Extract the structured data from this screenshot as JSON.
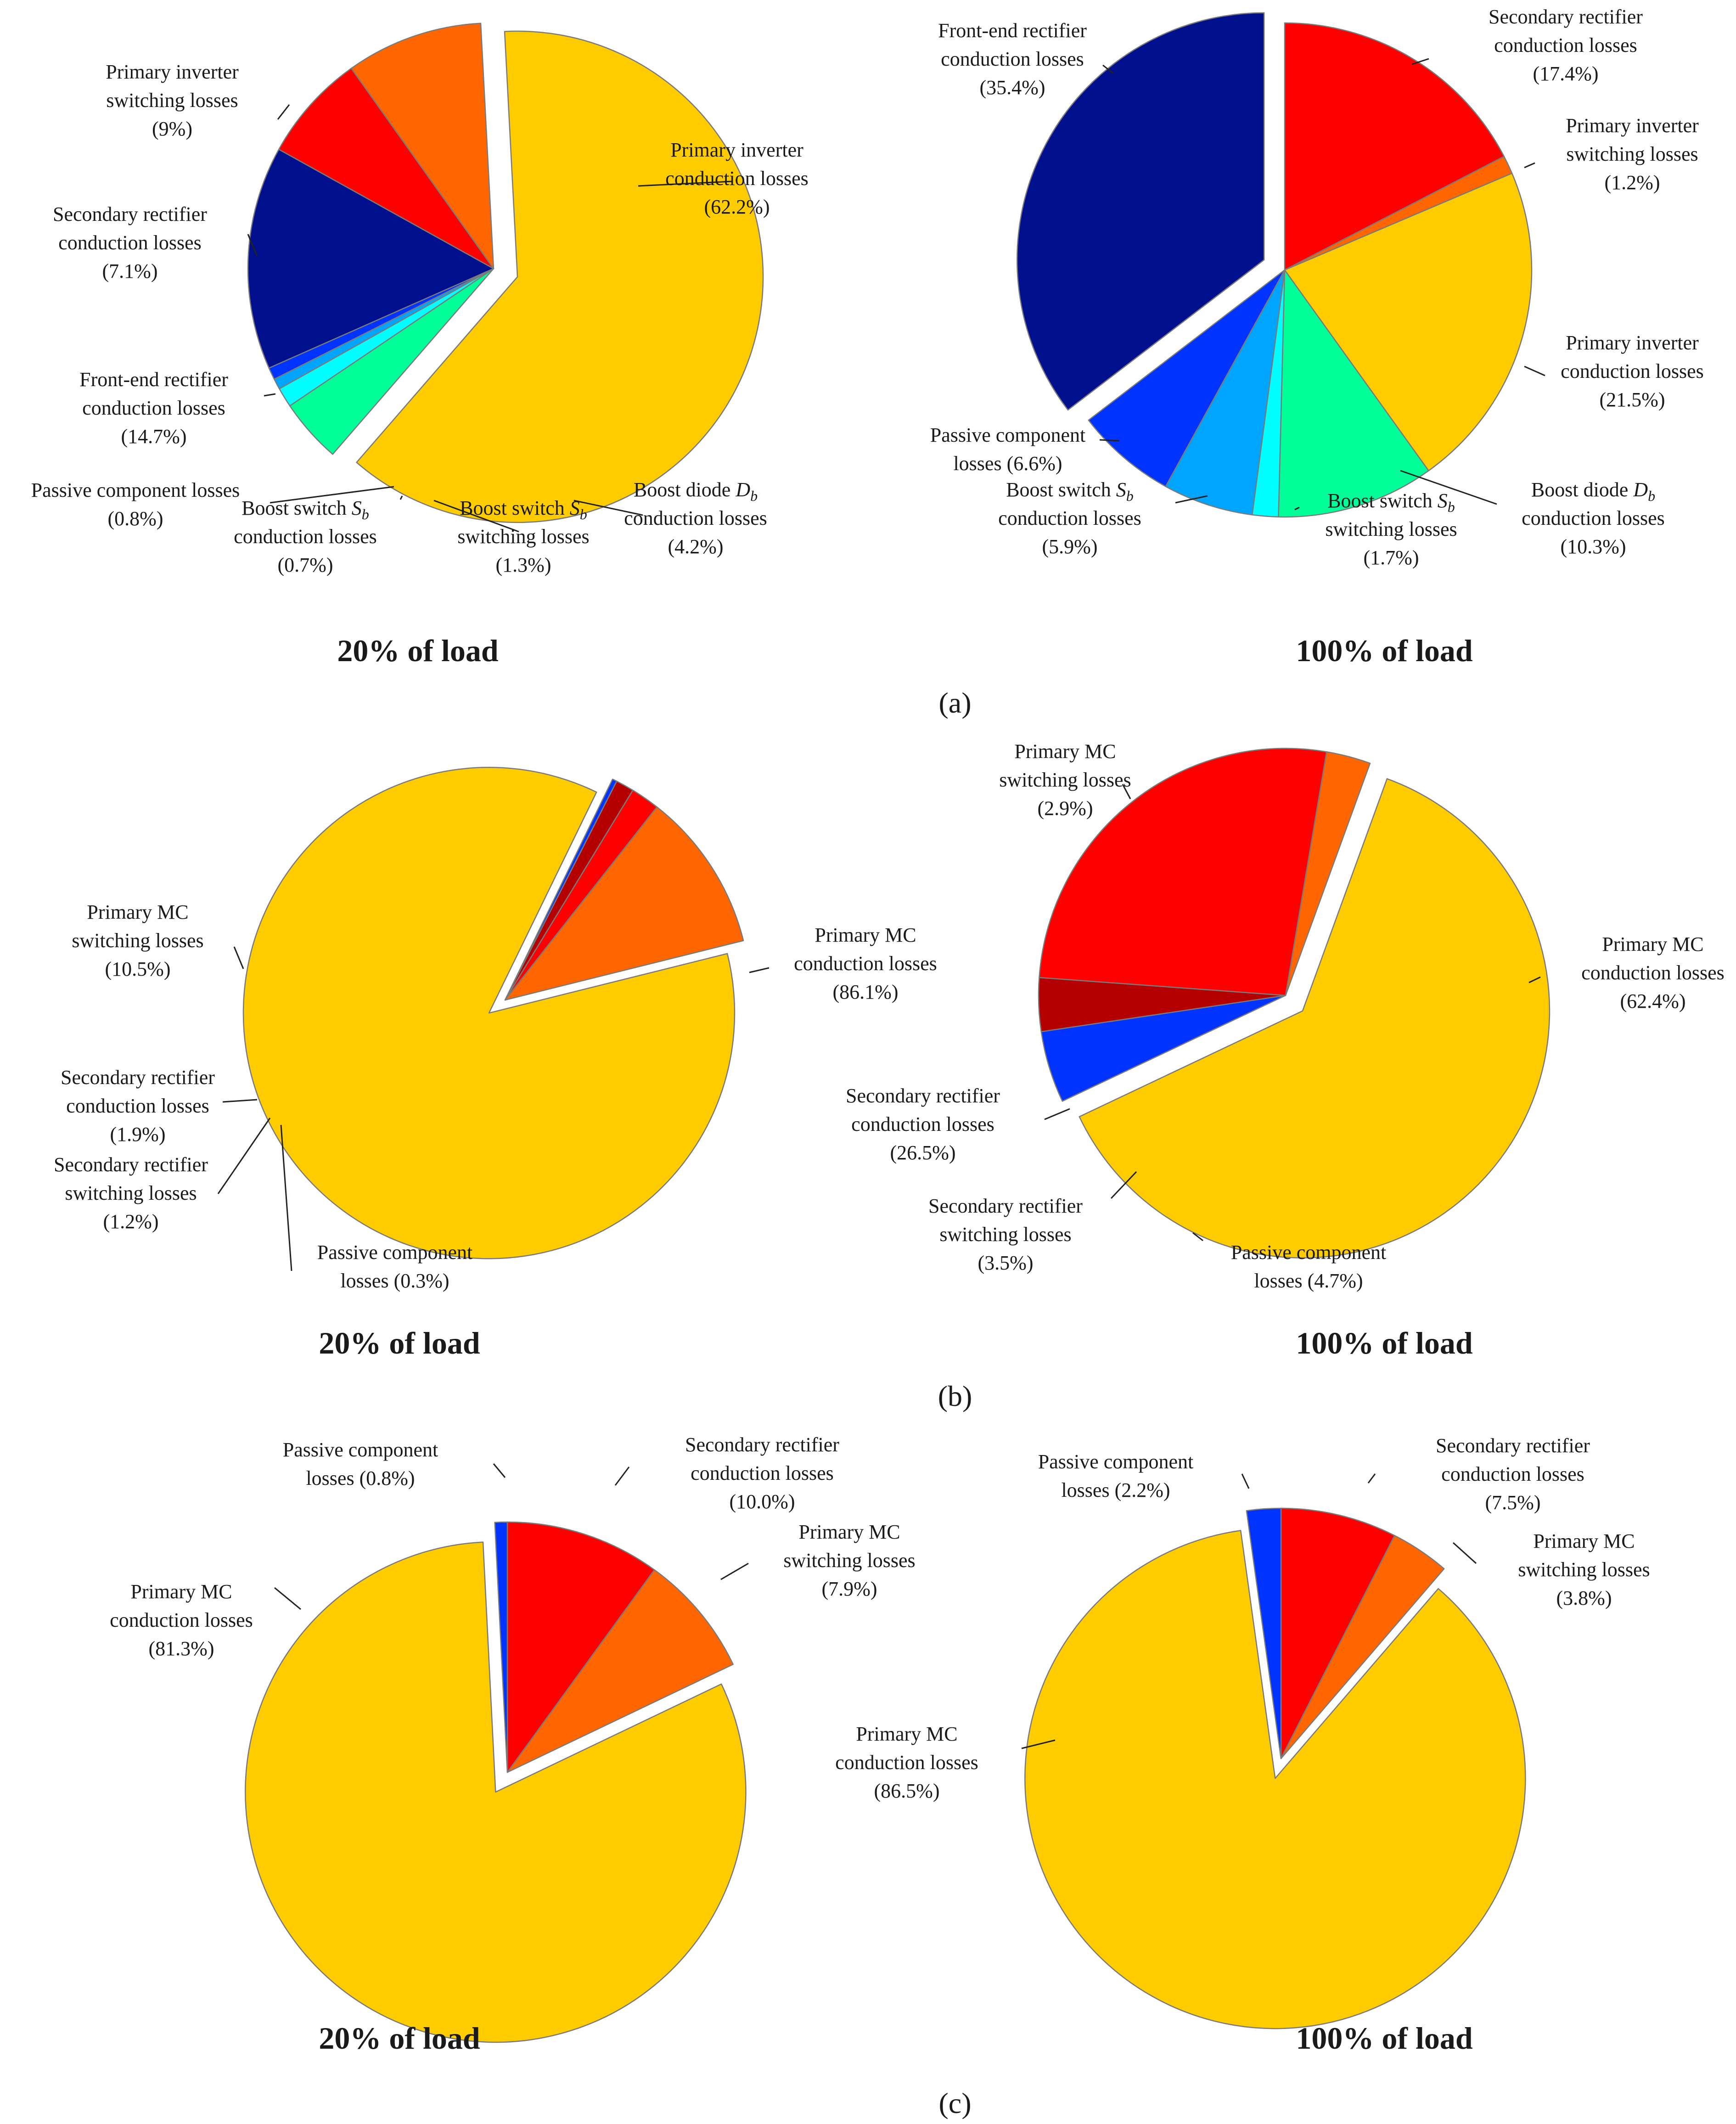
{
  "colors": {
    "yellow": "#FFCC00",
    "orange": "#FF6600",
    "red": "#FF0000",
    "dark_red": "#B40000",
    "navy": "#000F8C",
    "blue": "#0033FF",
    "sky_blue": "#00A5FF",
    "cyan": "#00FFFF",
    "mint": "#00FF99"
  },
  "panel_tags": [
    "(a)",
    "(b)",
    "(c)"
  ],
  "chart_data": [
    {
      "type": "pie",
      "panel": "a",
      "title": "20% of load",
      "slices": [
        {
          "name": "Primary inverter conduction losses",
          "value": 62.2,
          "label": [
            "Primary  inverter",
            "conduction losses",
            "(62.2%)"
          ],
          "color_key": "yellow",
          "exploded": true
        },
        {
          "name": "Boost diode Db conduction losses",
          "value": 4.2,
          "label": [
            "Boost diode D_b",
            "conduction losses",
            "(4.2%)"
          ],
          "color_key": "mint"
        },
        {
          "name": "Boost switch Sb switching losses",
          "value": 1.3,
          "label": [
            "Boost switch S_b",
            "switching losses",
            "(1.3%)"
          ],
          "color_key": "cyan"
        },
        {
          "name": "Boost switch Sb conduction losses",
          "value": 0.7,
          "label": [
            "Boost switch S_b",
            "conduction losses",
            "(0.7%)"
          ],
          "color_key": "sky_blue"
        },
        {
          "name": "Passive component losses",
          "value": 0.8,
          "label": [
            "Passive component losses",
            "(0.8%)"
          ],
          "color_key": "blue"
        },
        {
          "name": "Front-end rectifier conduction losses",
          "value": 14.7,
          "label": [
            "Front-end rectifier",
            "conduction losses",
            "(14.7%)"
          ],
          "color_key": "navy"
        },
        {
          "name": "Secondary rectifier conduction losses",
          "value": 7.1,
          "label": [
            "Secondary rectifier",
            "conduction losses",
            "(7.1%)"
          ],
          "color_key": "red"
        },
        {
          "name": "Primary inverter switching losses",
          "value": 9,
          "label": [
            "Primary  inverter",
            "switching losses",
            "(9%)"
          ],
          "color_key": "orange"
        }
      ]
    },
    {
      "type": "pie",
      "panel": "a",
      "title": "100% of load",
      "slices": [
        {
          "name": "Secondary rectifier conduction losses",
          "value": 17.4,
          "label": [
            "Secondary rectifier",
            "conduction losses",
            "(17.4%)"
          ],
          "color_key": "red"
        },
        {
          "name": "Primary inverter switching losses",
          "value": 1.2,
          "label": [
            "Primary  inverter",
            "switching losses",
            "(1.2%)"
          ],
          "color_key": "orange"
        },
        {
          "name": "Primary inverter conduction losses",
          "value": 21.5,
          "label": [
            "Primary  inverter",
            "conduction losses",
            "(21.5%)"
          ],
          "color_key": "yellow"
        },
        {
          "name": "Boost diode Db conduction losses",
          "value": 10.3,
          "label": [
            "Boost diode D_b",
            "conduction losses",
            "(10.3%)"
          ],
          "color_key": "mint"
        },
        {
          "name": "Boost switch Sb switching losses",
          "value": 1.7,
          "label": [
            "Boost switch S_b",
            "switching losses",
            "(1.7%)"
          ],
          "color_key": "cyan"
        },
        {
          "name": "Boost switch Sb conduction losses",
          "value": 5.9,
          "label": [
            "Boost switch S_b",
            "conduction losses",
            "(5.9%)"
          ],
          "color_key": "sky_blue"
        },
        {
          "name": "Passive component losses",
          "value": 6.6,
          "label": [
            "Passive component",
            "losses (6.6%)"
          ],
          "color_key": "blue"
        },
        {
          "name": "Front-end rectifier conduction losses",
          "value": 35.4,
          "label": [
            "Front-end rectifier",
            "conduction losses",
            "(35.4%)"
          ],
          "color_key": "navy",
          "exploded": true
        }
      ]
    },
    {
      "type": "pie",
      "panel": "b",
      "title": "20% of load",
      "slices": [
        {
          "name": "Primary MC conduction losses",
          "value": 86.1,
          "label": [
            "Primary  MC",
            "conduction losses",
            "(86.1%)"
          ],
          "color_key": "yellow",
          "exploded": true
        },
        {
          "name": "Passive component losses",
          "value": 0.3,
          "label": [
            "Passive component",
            "losses (0.3%)"
          ],
          "color_key": "blue"
        },
        {
          "name": "Secondary rectifier switching losses",
          "value": 1.2,
          "label": [
            "Secondary rectifier",
            "switching losses",
            "(1.2%)"
          ],
          "color_key": "dark_red"
        },
        {
          "name": "Secondary rectifier conduction losses",
          "value": 1.9,
          "label": [
            "Secondary rectifier",
            "conduction losses",
            "(1.9%)"
          ],
          "color_key": "red"
        },
        {
          "name": "Primary MC switching losses",
          "value": 10.5,
          "label": [
            "Primary  MC",
            "switching losses",
            "(10.5%)"
          ],
          "color_key": "orange"
        }
      ]
    },
    {
      "type": "pie",
      "panel": "b",
      "title": "100% of load",
      "slices": [
        {
          "name": "Primary MC conduction losses",
          "value": 62.4,
          "label": [
            "Primary  MC",
            "conduction losses",
            "(62.4%)"
          ],
          "color_key": "yellow",
          "exploded": true
        },
        {
          "name": "Passive component losses",
          "value": 4.7,
          "label": [
            "Passive component",
            "losses (4.7%)"
          ],
          "color_key": "blue"
        },
        {
          "name": "Secondary rectifier switching losses",
          "value": 3.5,
          "label": [
            "Secondary rectifier",
            "switching losses",
            "(3.5%)"
          ],
          "color_key": "dark_red"
        },
        {
          "name": "Secondary rectifier conduction losses",
          "value": 26.5,
          "label": [
            "Secondary rectifier",
            "conduction losses",
            "(26.5%)"
          ],
          "color_key": "red"
        },
        {
          "name": "Primary MC switching losses",
          "value": 2.9,
          "label": [
            "Primary  MC",
            "switching losses",
            "(2.9%)"
          ],
          "color_key": "orange"
        }
      ]
    },
    {
      "type": "pie",
      "panel": "c",
      "title": "20% of load",
      "slices": [
        {
          "name": "Secondary rectifier conduction losses",
          "value": 10.0,
          "label": [
            "Secondary rectifier",
            "conduction losses",
            "(10.0%)"
          ],
          "color_key": "red"
        },
        {
          "name": "Primary MC switching losses",
          "value": 7.9,
          "label": [
            "Primary  MC",
            "switching losses",
            "(7.9%)"
          ],
          "color_key": "orange"
        },
        {
          "name": "Primary MC conduction losses",
          "value": 81.3,
          "label": [
            "Primary  MC",
            "conduction losses",
            "(81.3%)"
          ],
          "color_key": "yellow",
          "exploded": true
        },
        {
          "name": "Passive component losses",
          "value": 0.8,
          "label": [
            "Passive component",
            "losses (0.8%)"
          ],
          "color_key": "blue"
        }
      ]
    },
    {
      "type": "pie",
      "panel": "c",
      "title": "100% of load",
      "slices": [
        {
          "name": "Secondary rectifier conduction losses",
          "value": 7.5,
          "label": [
            "Secondary rectifier",
            "conduction losses",
            "(7.5%)"
          ],
          "color_key": "red"
        },
        {
          "name": "Primary MC switching losses",
          "value": 3.8,
          "label": [
            "Primary  MC",
            "switching losses",
            "(3.8%)"
          ],
          "color_key": "orange"
        },
        {
          "name": "Primary MC conduction losses",
          "value": 86.5,
          "label": [
            "Primary  MC",
            "conduction losses",
            "(86.5%)"
          ],
          "color_key": "yellow",
          "exploded": true
        },
        {
          "name": "Passive component losses",
          "value": 2.2,
          "label": [
            "Passive component",
            "losses (2.2%)"
          ],
          "color_key": "blue"
        }
      ]
    }
  ]
}
